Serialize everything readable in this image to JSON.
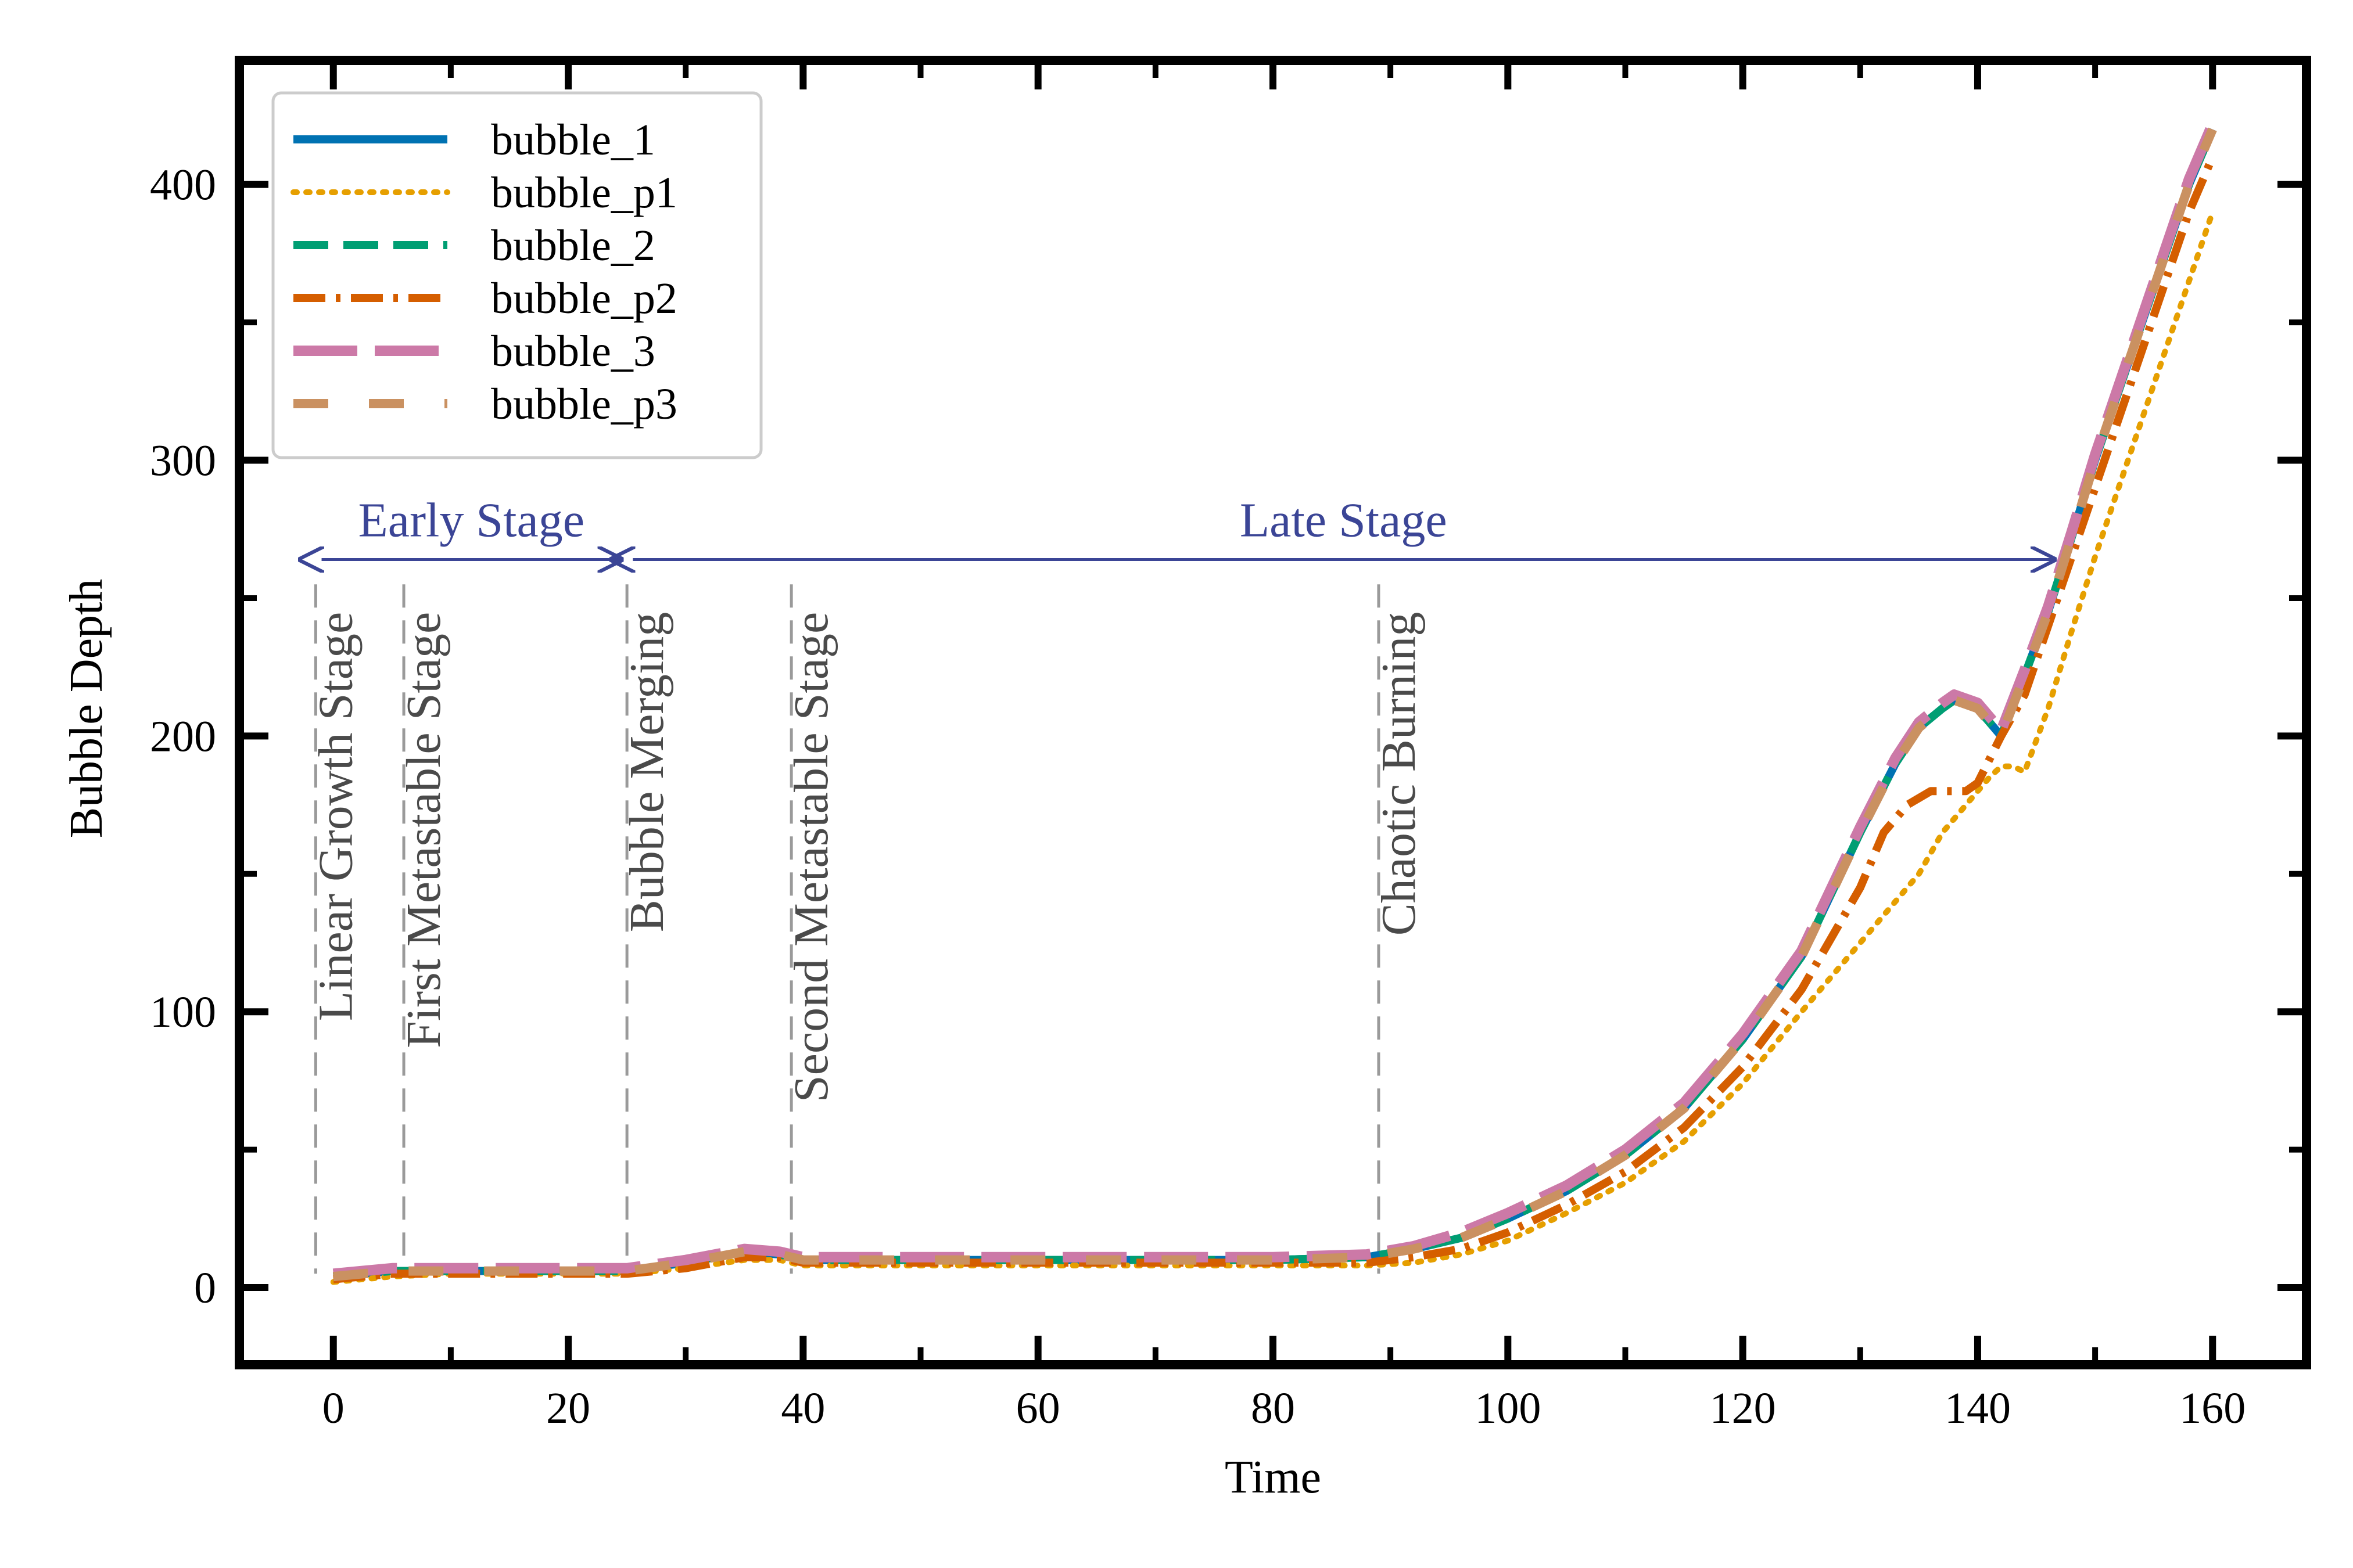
{
  "chart_data": {
    "type": "line",
    "xlabel": "Time",
    "ylabel": "Bubble Depth",
    "xlim": [
      -8,
      168
    ],
    "ylim": [
      -28,
      445
    ],
    "xticks": [
      0,
      20,
      40,
      60,
      80,
      100,
      120,
      140,
      160
    ],
    "yticks": [
      0,
      100,
      200,
      300,
      400
    ],
    "legend_position": "upper-left",
    "series": [
      {
        "name": "bubble_1",
        "color": "#0072b2",
        "style": "solid",
        "x": [
          0,
          5,
          10,
          15,
          20,
          25,
          30,
          35,
          38,
          40,
          50,
          60,
          70,
          80,
          88,
          92,
          96,
          100,
          105,
          110,
          115,
          120,
          125,
          130,
          133,
          135,
          137,
          138,
          140,
          141,
          142,
          144,
          146,
          148,
          150,
          152,
          154,
          156,
          158,
          160
        ],
        "y": [
          4,
          6,
          6,
          6,
          6,
          6,
          9,
          13,
          12,
          10,
          10,
          10,
          10,
          10,
          11,
          14,
          18,
          25,
          35,
          48,
          65,
          90,
          120,
          165,
          190,
          203,
          210,
          213,
          210,
          205,
          200,
          222,
          245,
          272,
          300,
          325,
          350,
          375,
          400,
          420
        ]
      },
      {
        "name": "bubble_p1",
        "color": "#e69f00",
        "style": "dotted",
        "x": [
          0,
          5,
          10,
          15,
          20,
          25,
          30,
          35,
          38,
          40,
          50,
          60,
          70,
          80,
          88,
          92,
          96,
          100,
          105,
          110,
          115,
          120,
          125,
          130,
          133,
          135,
          137,
          139,
          140,
          141,
          142,
          143,
          144,
          146,
          148,
          150,
          152,
          154,
          156,
          158,
          160
        ],
        "y": [
          2,
          4,
          5,
          5,
          5,
          5,
          7,
          10,
          10,
          8,
          8,
          8,
          8,
          8,
          8,
          9,
          12,
          17,
          27,
          38,
          53,
          74,
          100,
          125,
          140,
          150,
          165,
          175,
          180,
          185,
          189,
          189,
          187,
          210,
          238,
          265,
          290,
          315,
          340,
          365,
          390
        ]
      },
      {
        "name": "bubble_2",
        "color": "#009e73",
        "style": "dashed",
        "x": [
          0,
          5,
          10,
          15,
          20,
          25,
          30,
          35,
          38,
          40,
          50,
          60,
          70,
          80,
          88,
          92,
          96,
          100,
          105,
          110,
          115,
          120,
          125,
          130,
          133,
          135,
          137,
          138,
          140,
          141,
          142,
          144,
          146,
          148,
          150,
          152,
          154,
          156,
          158,
          160
        ],
        "y": [
          4,
          6,
          6,
          6,
          6,
          6,
          9,
          13,
          12,
          10,
          10,
          10,
          10,
          10,
          11,
          14,
          18,
          25,
          35,
          48,
          65,
          90,
          120,
          165,
          190,
          203,
          210,
          213,
          210,
          205,
          200,
          222,
          245,
          272,
          300,
          325,
          350,
          375,
          400,
          420
        ]
      },
      {
        "name": "bubble_p2",
        "color": "#d55e00",
        "style": "dashdot",
        "x": [
          0,
          5,
          10,
          15,
          20,
          25,
          30,
          35,
          38,
          40,
          50,
          60,
          70,
          80,
          88,
          92,
          96,
          100,
          105,
          110,
          115,
          120,
          125,
          130,
          132,
          134,
          136,
          138,
          139,
          140,
          142,
          144,
          146,
          148,
          150,
          152,
          154,
          156,
          158,
          160
        ],
        "y": [
          3,
          5,
          5,
          5,
          5,
          5,
          7,
          11,
          11,
          9,
          9,
          9,
          9,
          9,
          9,
          11,
          14,
          20,
          30,
          42,
          58,
          80,
          108,
          145,
          165,
          175,
          180,
          180,
          180,
          183,
          200,
          215,
          240,
          265,
          290,
          315,
          340,
          365,
          390,
          410
        ]
      },
      {
        "name": "bubble_3",
        "color": "#cc79a7",
        "style": "longdash",
        "x": [
          0,
          5,
          10,
          15,
          20,
          25,
          30,
          35,
          38,
          40,
          50,
          60,
          70,
          80,
          88,
          92,
          96,
          100,
          105,
          110,
          115,
          120,
          125,
          130,
          133,
          135,
          137,
          138,
          140,
          141,
          142,
          144,
          146,
          148,
          150,
          152,
          154,
          156,
          158,
          160
        ],
        "y": [
          5,
          7,
          7,
          7,
          7,
          7,
          10,
          14,
          13,
          11,
          11,
          11,
          11,
          11,
          12,
          15,
          20,
          27,
          37,
          50,
          67,
          92,
          122,
          167,
          192,
          205,
          212,
          215,
          212,
          207,
          202,
          224,
          247,
          274,
          302,
          327,
          352,
          377,
          402,
          422
        ]
      },
      {
        "name": "bubble_p3",
        "color": "#ca9161",
        "style": "loosedash",
        "x": [
          0,
          5,
          10,
          15,
          20,
          25,
          30,
          35,
          38,
          40,
          50,
          60,
          70,
          80,
          88,
          92,
          96,
          100,
          105,
          110,
          115,
          120,
          125,
          130,
          133,
          135,
          137,
          138,
          140,
          141,
          142,
          144,
          146,
          148,
          150,
          152,
          154,
          156,
          158,
          160
        ],
        "y": [
          4,
          6,
          6,
          6,
          6,
          6,
          9,
          13,
          12,
          10,
          10,
          10,
          10,
          10,
          11,
          14,
          18,
          25,
          35,
          48,
          65,
          90,
          120,
          165,
          190,
          203,
          210,
          213,
          210,
          205,
          200,
          222,
          245,
          272,
          300,
          325,
          350,
          375,
          400,
          420
        ]
      }
    ],
    "stages": [
      {
        "label": "Linear Growth Stage",
        "x": -1.5,
        "y_top": 255,
        "text_y": 245
      },
      {
        "label": "First Metastable Stage",
        "x": 6,
        "y_top": 255,
        "text_y": 245
      },
      {
        "label": "Bubble Merging",
        "x": 25,
        "y_top": 255,
        "text_y": 245
      },
      {
        "label": "Second Metastable Stage",
        "x": 39,
        "y_top": 255,
        "text_y": 245
      },
      {
        "label": "Chaotic Burning",
        "x": 89,
        "y_top": 255,
        "text_y": 245
      }
    ],
    "ranges": [
      {
        "label": "Early Stage",
        "x_start": -1,
        "x_end": 24.5,
        "y": 264
      },
      {
        "label": "Late Stage",
        "x_start": 25.5,
        "x_end": 146.5,
        "y": 264
      }
    ],
    "colors": {
      "stage_line": "#9a9a9a",
      "range_arrow": "#3b4596"
    }
  }
}
